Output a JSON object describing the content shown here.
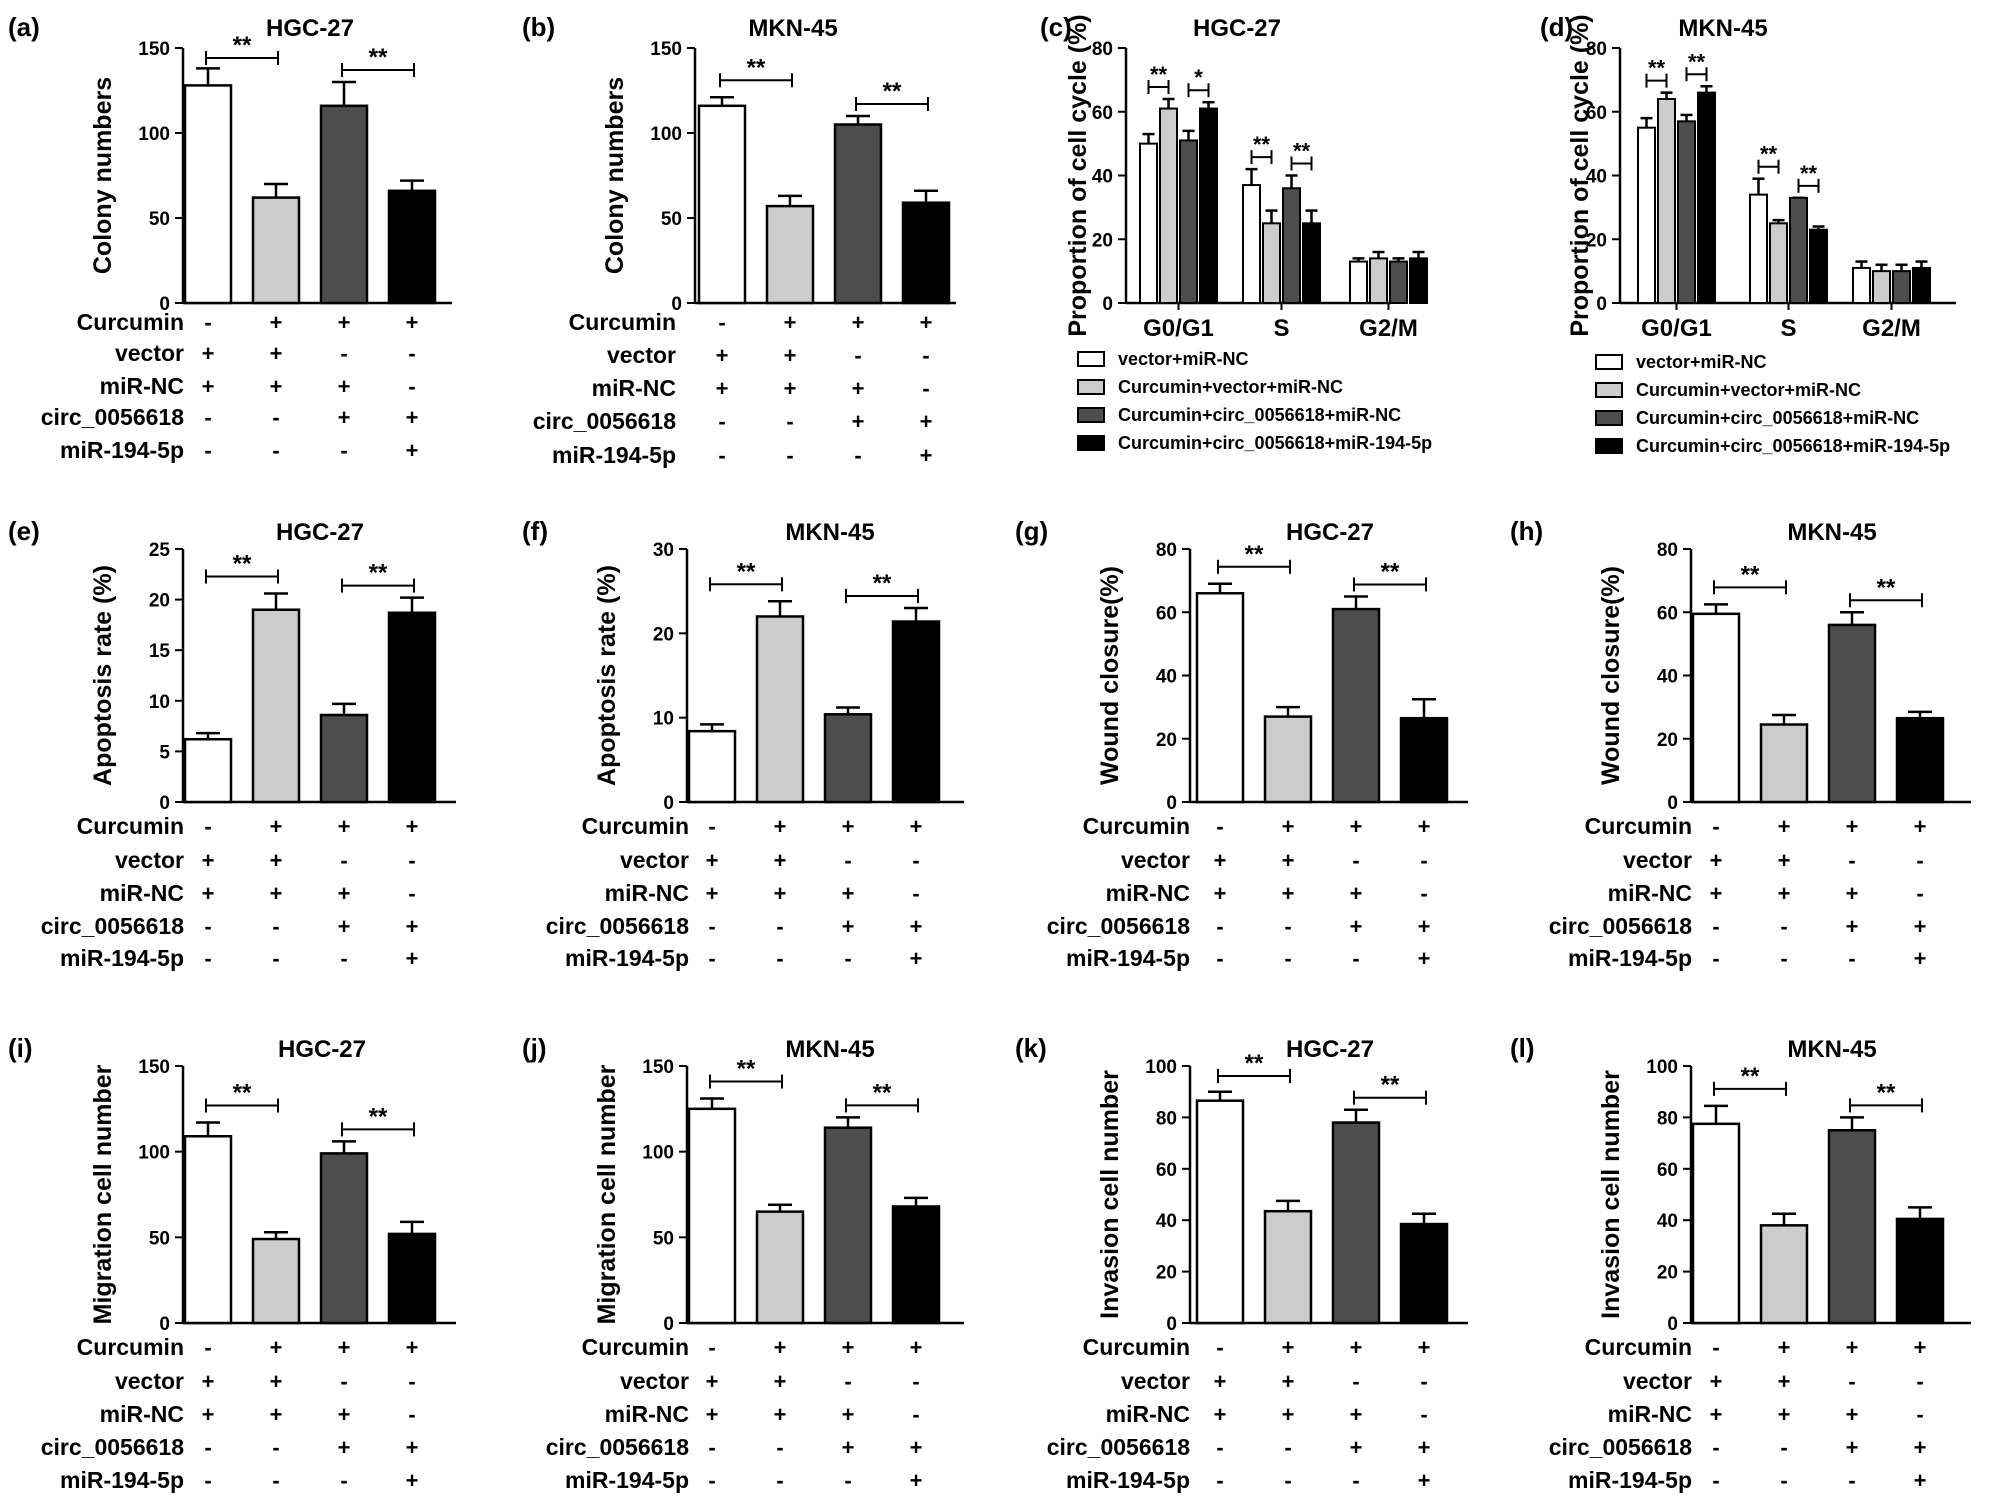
{
  "figure": {
    "factors": [
      "Curcumin",
      "vector",
      "miR-NC",
      "circ_0056618",
      "miR-194-5p"
    ],
    "groups": [
      [
        "-",
        "+",
        "+",
        "-",
        "-"
      ],
      [
        "+",
        "+",
        "+",
        "-",
        "-"
      ],
      [
        "+",
        "-",
        "+",
        "+",
        "-"
      ],
      [
        "+",
        "-",
        "-",
        "+",
        "+"
      ]
    ],
    "colors": [
      "#ffffff",
      "#cccccc",
      "#4d4d4d",
      "#000000"
    ],
    "edge_color": "#000000",
    "sig_label": "**",
    "legend": [
      "vector+miR-NC",
      "Curcumin+vector+miR-NC",
      "Curcumin+circ_0056618+miR-NC",
      "Curcumin+circ_0056618+miR-194-5p"
    ]
  },
  "chart_data": [
    {
      "panel": "(a)",
      "type": "bar",
      "title": "HGC-27",
      "ylabel": "Colony numbers",
      "ylim": [
        0,
        150
      ],
      "yticks": [
        0,
        50,
        100,
        150
      ],
      "values": [
        128,
        62,
        116,
        66
      ],
      "errors": [
        10,
        8,
        14,
        6
      ],
      "significance": [
        {
          "between": [
            0,
            1
          ],
          "label": "**"
        },
        {
          "between": [
            2,
            3
          ],
          "label": "**"
        }
      ]
    },
    {
      "panel": "(b)",
      "type": "bar",
      "title": "MKN-45",
      "ylabel": "Colony numbers",
      "ylim": [
        0,
        150
      ],
      "yticks": [
        0,
        50,
        100,
        150
      ],
      "values": [
        116,
        57,
        105,
        59
      ],
      "errors": [
        5,
        6,
        5,
        7
      ],
      "significance": [
        {
          "between": [
            0,
            1
          ],
          "label": "**"
        },
        {
          "between": [
            2,
            3
          ],
          "label": "**"
        }
      ]
    },
    {
      "panel": "(c)",
      "type": "bar",
      "title": "HGC-27",
      "ylabel": "Proportion of cell cycle (%)",
      "ylim": [
        0,
        80
      ],
      "yticks": [
        0,
        20,
        40,
        60,
        80
      ],
      "categories": [
        "G0/G1",
        "S",
        "G2/M"
      ],
      "series": [
        {
          "name": "vector+miR-NC",
          "values": [
            50,
            37,
            13
          ],
          "errors": [
            3,
            5,
            1
          ]
        },
        {
          "name": "Curcumin+vector+miR-NC",
          "values": [
            61,
            25,
            14
          ],
          "errors": [
            3,
            4,
            2
          ]
        },
        {
          "name": "Curcumin+circ_0056618+miR-NC",
          "values": [
            51,
            36,
            13
          ],
          "errors": [
            3,
            4,
            1
          ]
        },
        {
          "name": "Curcumin+circ_0056618+miR-194-5p",
          "values": [
            61,
            25,
            14
          ],
          "errors": [
            2,
            4,
            2
          ]
        }
      ],
      "significance": [
        {
          "category": 0,
          "between": [
            0,
            1
          ],
          "label": "**"
        },
        {
          "category": 0,
          "between": [
            2,
            3
          ],
          "label": "*"
        },
        {
          "category": 1,
          "between": [
            0,
            1
          ],
          "label": "**"
        },
        {
          "category": 1,
          "between": [
            2,
            3
          ],
          "label": "**"
        }
      ]
    },
    {
      "panel": "(d)",
      "type": "bar",
      "title": "MKN-45",
      "ylabel": "Proportion of cell cycle (%)",
      "ylim": [
        0,
        80
      ],
      "yticks": [
        0,
        20,
        40,
        60,
        80
      ],
      "categories": [
        "G0/G1",
        "S",
        "G2/M"
      ],
      "series": [
        {
          "name": "vector+miR-NC",
          "values": [
            55,
            34,
            11
          ],
          "errors": [
            3,
            5,
            2
          ]
        },
        {
          "name": "Curcumin+vector+miR-NC",
          "values": [
            64,
            25,
            10
          ],
          "errors": [
            2,
            1,
            2
          ]
        },
        {
          "name": "Curcumin+circ_0056618+miR-NC",
          "values": [
            57,
            33,
            10
          ],
          "errors": [
            2,
            0,
            2
          ]
        },
        {
          "name": "Curcumin+circ_0056618+miR-194-5p",
          "values": [
            66,
            23,
            11
          ],
          "errors": [
            2,
            1,
            2
          ]
        }
      ],
      "significance": [
        {
          "category": 0,
          "between": [
            0,
            1
          ],
          "label": "**"
        },
        {
          "category": 0,
          "between": [
            2,
            3
          ],
          "label": "**"
        },
        {
          "category": 1,
          "between": [
            0,
            1
          ],
          "label": "**"
        },
        {
          "category": 1,
          "between": [
            2,
            3
          ],
          "label": "**"
        }
      ]
    },
    {
      "panel": "(e)",
      "type": "bar",
      "title": "HGC-27",
      "ylabel": "Apoptosis rate (%)",
      "ylim": [
        0,
        25
      ],
      "yticks": [
        0,
        5,
        10,
        15,
        20,
        25
      ],
      "values": [
        6.2,
        19,
        8.6,
        18.7
      ],
      "errors": [
        0.6,
        1.6,
        1.1,
        1.5
      ],
      "significance": [
        {
          "between": [
            0,
            1
          ],
          "label": "**"
        },
        {
          "between": [
            2,
            3
          ],
          "label": "**"
        }
      ]
    },
    {
      "panel": "(f)",
      "type": "bar",
      "title": "MKN-45",
      "ylabel": "Apoptosis rate (%)",
      "ylim": [
        0,
        30
      ],
      "yticks": [
        0,
        10,
        20,
        30
      ],
      "values": [
        8.4,
        22,
        10.4,
        21.4
      ],
      "errors": [
        0.8,
        1.8,
        0.8,
        1.6
      ],
      "significance": [
        {
          "between": [
            0,
            1
          ],
          "label": "**"
        },
        {
          "between": [
            2,
            3
          ],
          "label": "**"
        }
      ]
    },
    {
      "panel": "(g)",
      "type": "bar",
      "title": "HGC-27",
      "ylabel": "Wound closure(%)",
      "ylim": [
        0,
        80
      ],
      "yticks": [
        0,
        20,
        40,
        60,
        80
      ],
      "values": [
        66,
        27,
        61,
        26.5
      ],
      "errors": [
        3,
        3,
        4,
        6
      ],
      "significance": [
        {
          "between": [
            0,
            1
          ],
          "label": "**"
        },
        {
          "between": [
            2,
            3
          ],
          "label": "**"
        }
      ]
    },
    {
      "panel": "(h)",
      "type": "bar",
      "title": "MKN-45",
      "ylabel": "Wound closure(%)",
      "ylim": [
        0,
        80
      ],
      "yticks": [
        0,
        20,
        40,
        60,
        80
      ],
      "values": [
        59.5,
        24.5,
        56,
        26.5
      ],
      "errors": [
        3,
        3,
        4,
        2
      ],
      "significance": [
        {
          "between": [
            0,
            1
          ],
          "label": "**"
        },
        {
          "between": [
            2,
            3
          ],
          "label": "**"
        }
      ]
    },
    {
      "panel": "(i)",
      "type": "bar",
      "title": "HGC-27",
      "ylabel": "Migration cell number",
      "ylim": [
        0,
        150
      ],
      "yticks": [
        0,
        50,
        100,
        150
      ],
      "values": [
        109,
        49,
        99,
        52
      ],
      "errors": [
        8,
        4,
        7,
        7
      ],
      "significance": [
        {
          "between": [
            0,
            1
          ],
          "label": "**"
        },
        {
          "between": [
            2,
            3
          ],
          "label": "**"
        }
      ]
    },
    {
      "panel": "(j)",
      "type": "bar",
      "title": "MKN-45",
      "ylabel": "Migration cell number",
      "ylim": [
        0,
        150
      ],
      "yticks": [
        0,
        50,
        100,
        150
      ],
      "values": [
        125,
        65,
        114,
        68
      ],
      "errors": [
        6,
        4,
        6,
        5
      ],
      "significance": [
        {
          "between": [
            0,
            1
          ],
          "label": "**"
        },
        {
          "between": [
            2,
            3
          ],
          "label": "**"
        }
      ]
    },
    {
      "panel": "(k)",
      "type": "bar",
      "title": "HGC-27",
      "ylabel": "Invasion cell number",
      "ylim": [
        0,
        100
      ],
      "yticks": [
        0,
        20,
        40,
        60,
        80,
        100
      ],
      "values": [
        86.5,
        43.5,
        78,
        38.5
      ],
      "errors": [
        3.5,
        4,
        5,
        4
      ],
      "significance": [
        {
          "between": [
            0,
            1
          ],
          "label": "**"
        },
        {
          "between": [
            2,
            3
          ],
          "label": "**"
        }
      ]
    },
    {
      "panel": "(l)",
      "type": "bar",
      "title": "MKN-45",
      "ylabel": "Invasion cell number",
      "ylim": [
        0,
        100
      ],
      "yticks": [
        0,
        20,
        40,
        60,
        80,
        100
      ],
      "values": [
        77.5,
        38,
        75,
        40.5
      ],
      "errors": [
        7,
        4.5,
        5,
        4.5
      ],
      "significance": [
        {
          "between": [
            0,
            1
          ],
          "label": "**"
        },
        {
          "between": [
            2,
            3
          ],
          "label": "**"
        }
      ]
    }
  ]
}
